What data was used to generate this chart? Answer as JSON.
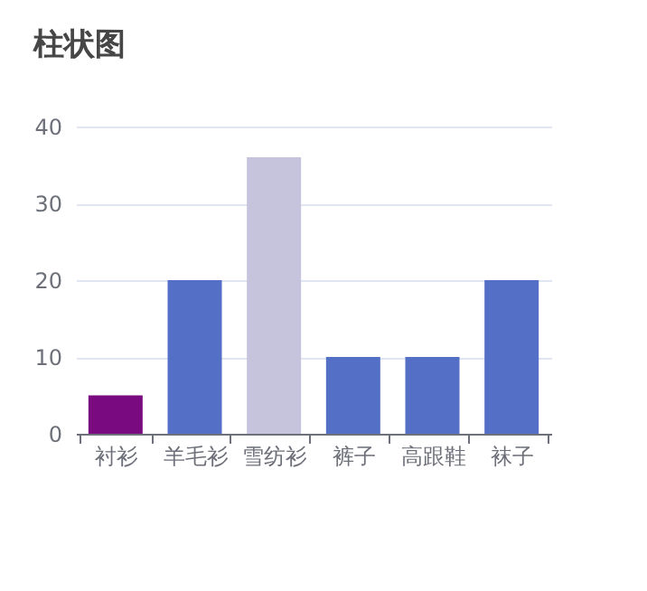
{
  "chart_data": {
    "type": "bar",
    "title": "柱状图",
    "categories": [
      "衬衫",
      "羊毛衫",
      "雪纺衫",
      "裤子",
      "高跟鞋",
      "袜子"
    ],
    "values": [
      5,
      20,
      36,
      10,
      10,
      20
    ],
    "colors": [
      "#7a0a80",
      "#5470c6",
      "#c6c4dc",
      "#5470c6",
      "#5470c6",
      "#5470c6"
    ],
    "ylim": [
      0,
      40
    ],
    "yticks": [
      0,
      10,
      20,
      30,
      40
    ],
    "grid": "y"
  }
}
